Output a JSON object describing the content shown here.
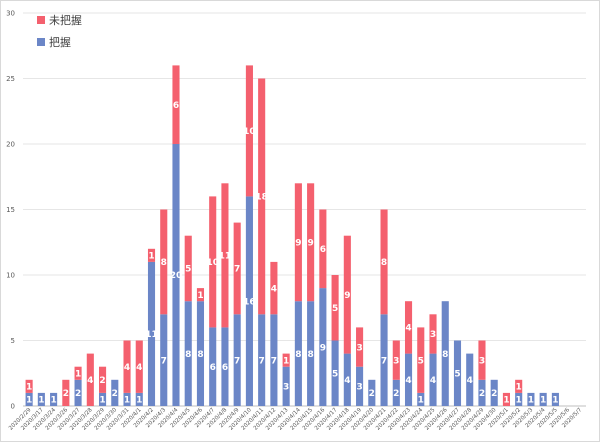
{
  "chart_data": {
    "type": "bar",
    "stacked": true,
    "categories": [
      "2020/2/29",
      "2020/3/17",
      "2020/3/24",
      "2020/3/26",
      "2020/3/27",
      "2020/3/28",
      "2020/3/29",
      "2020/3/30",
      "2020/3/31",
      "2020/4/1",
      "2020/4/2",
      "2020/4/3",
      "2020/4/4",
      "2020/4/5",
      "2020/4/6",
      "2020/4/7",
      "2020/4/8",
      "2020/4/9",
      "2020/4/10",
      "2020/4/11",
      "2020/4/12",
      "2020/4/13",
      "2020/4/14",
      "2020/4/15",
      "2020/4/16",
      "2020/4/17",
      "2020/4/18",
      "2020/4/19",
      "2020/4/20",
      "2020/4/21",
      "2020/4/22",
      "2020/4/23",
      "2020/4/24",
      "2020/4/25",
      "2020/4/26",
      "2020/4/27",
      "2020/4/28",
      "2020/4/29",
      "2020/4/30",
      "2020/5/1",
      "2020/5/2",
      "2020/5/3",
      "2020/5/4",
      "2020/5/5",
      "2020/5/6",
      "2020/5/7"
    ],
    "series": [
      {
        "name": "把握",
        "color": "#6b86c7",
        "values": [
          1,
          1,
          1,
          0,
          2,
          0,
          1,
          2,
          1,
          1,
          11,
          7,
          20,
          8,
          8,
          6,
          6,
          7,
          16,
          7,
          7,
          3,
          8,
          8,
          9,
          5,
          4,
          3,
          2,
          7,
          2,
          4,
          1,
          4,
          8,
          5,
          4,
          2,
          2,
          0,
          1,
          1,
          1,
          1,
          0,
          0
        ]
      },
      {
        "name": "未把握",
        "color": "#f4606e",
        "values": [
          1,
          0,
          0,
          2,
          1,
          4,
          2,
          0,
          4,
          4,
          1,
          8,
          6,
          5,
          1,
          10,
          11,
          7,
          10,
          18,
          4,
          1,
          9,
          9,
          6,
          5,
          9,
          3,
          0,
          8,
          3,
          4,
          5,
          3,
          0,
          0,
          0,
          3,
          0,
          1,
          1,
          0,
          0,
          0,
          0,
          0
        ]
      }
    ],
    "ylim": [
      0,
      30
    ],
    "yticks": [
      "0",
      "5",
      "10",
      "15",
      "20",
      "25",
      "30"
    ],
    "grid": true,
    "legend_position": "top-left"
  }
}
